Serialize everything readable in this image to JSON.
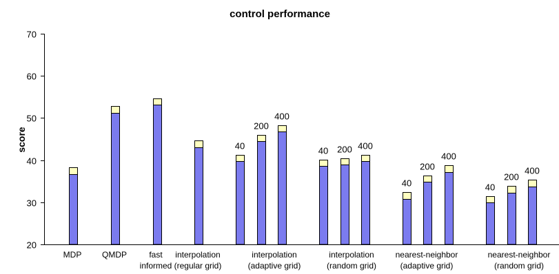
{
  "chart_data": {
    "type": "bar",
    "title": "control performance",
    "xlabel": "",
    "ylabel": "score",
    "ylim": [
      20,
      70
    ],
    "yticks": [
      "20",
      "30",
      "40",
      "50",
      "60",
      "70"
    ],
    "grid": false,
    "legend": "none",
    "colors": {
      "bar": "#7b7bef",
      "error_cap": "#ffffc0"
    },
    "groups": [
      {
        "label_lines": [
          "MDP"
        ],
        "bars": [
          {
            "label": "",
            "value": 36.7,
            "upper": 38.3
          }
        ]
      },
      {
        "label_lines": [
          "QMDP"
        ],
        "bars": [
          {
            "label": "",
            "value": 51.2,
            "upper": 52.8
          }
        ]
      },
      {
        "label_lines": [
          "fast",
          "informed"
        ],
        "bars": [
          {
            "label": "",
            "value": 53.1,
            "upper": 54.7
          }
        ]
      },
      {
        "label_lines": [
          "interpolation",
          "(regular grid)"
        ],
        "bars": [
          {
            "label": "",
            "value": 43.0,
            "upper": 44.6
          }
        ]
      },
      {
        "label_lines": [
          "interpolation",
          "(adaptive grid)"
        ],
        "bars": [
          {
            "label": "40",
            "value": 39.7,
            "upper": 41.3
          },
          {
            "label": "200",
            "value": 44.5,
            "upper": 46.0
          },
          {
            "label": "400",
            "value": 46.8,
            "upper": 48.3
          }
        ]
      },
      {
        "label_lines": [
          "interpolation",
          "(random grid)"
        ],
        "bars": [
          {
            "label": "40",
            "value": 38.6,
            "upper": 40.1
          },
          {
            "label": "200",
            "value": 39.0,
            "upper": 40.4
          },
          {
            "label": "400",
            "value": 39.8,
            "upper": 41.3
          }
        ]
      },
      {
        "label_lines": [
          "nearest-neighbor",
          "(adaptive grid)"
        ],
        "bars": [
          {
            "label": "40",
            "value": 30.8,
            "upper": 32.4
          },
          {
            "label": "200",
            "value": 34.8,
            "upper": 36.4
          },
          {
            "label": "400",
            "value": 37.2,
            "upper": 38.8
          }
        ]
      },
      {
        "label_lines": [
          "nearest-neighbor",
          "(random grid)"
        ],
        "bars": [
          {
            "label": "40",
            "value": 29.9,
            "upper": 31.5
          },
          {
            "label": "200",
            "value": 32.3,
            "upper": 33.9
          },
          {
            "label": "400",
            "value": 33.8,
            "upper": 35.4
          }
        ]
      }
    ]
  }
}
